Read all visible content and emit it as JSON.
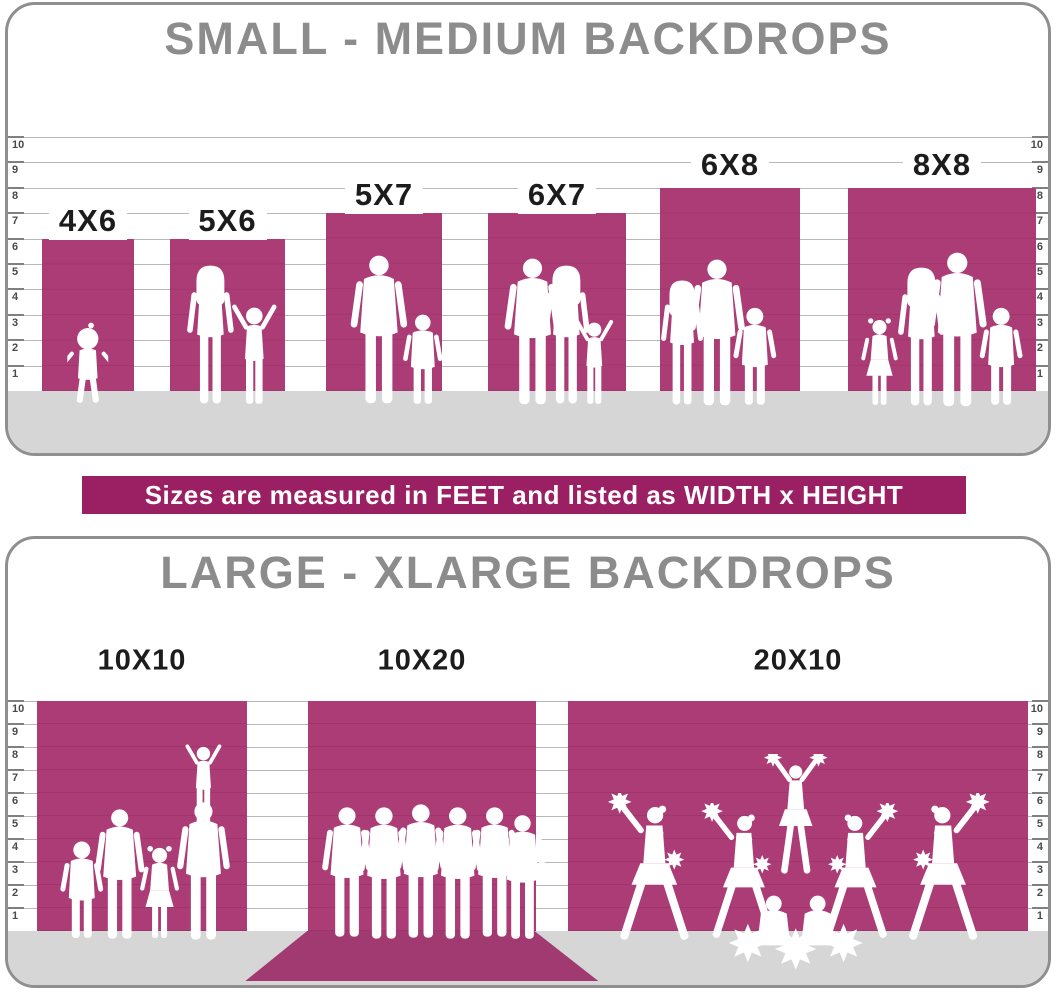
{
  "colors": {
    "backdrop_pink": "#ac3c76",
    "banner_magenta": "#9a1f63",
    "runner_pink": "#a23a72",
    "floor_gray": "#d6d6d6",
    "title_gray": "#8c8c8c",
    "label_black": "#1c1c1c",
    "panel_border_gray": "#8f8f8f",
    "ruler_line_gray": "#b8b8b8",
    "tick_text_gray": "#4a4a4a",
    "silhouette_white": "#ffffff"
  },
  "top_panel": {
    "title": "SMALL - MEDIUM BACKDROPS",
    "ruler_ticks": [
      "1",
      "2",
      "3",
      "4",
      "5",
      "6",
      "7",
      "8",
      "9",
      "10"
    ],
    "backdrops": [
      {
        "label": "4X6",
        "width_ft": 4,
        "height_ft": 6,
        "figures": "toddler-girl"
      },
      {
        "label": "5X6",
        "width_ft": 5,
        "height_ft": 6,
        "figures": "mother-with-child"
      },
      {
        "label": "5X7",
        "width_ft": 5,
        "height_ft": 7,
        "figures": "father-with-son"
      },
      {
        "label": "6X7",
        "width_ft": 6,
        "height_ft": 7,
        "figures": "couple-with-child"
      },
      {
        "label": "6X8",
        "width_ft": 6,
        "height_ft": 8,
        "figures": "family-of-three"
      },
      {
        "label": "8X8",
        "width_ft": 8,
        "height_ft": 8,
        "figures": "family-of-four"
      }
    ]
  },
  "banner": {
    "text": "Sizes are measured in FEET and listed as WIDTH x HEIGHT"
  },
  "bottom_panel": {
    "title": "LARGE - XLARGE BACKDROPS",
    "ruler_ticks": [
      "1",
      "2",
      "3",
      "4",
      "5",
      "6",
      "7",
      "8",
      "9",
      "10"
    ],
    "backdrops": [
      {
        "label": "10X10",
        "width_ft": 10,
        "height_ft": 10,
        "figures": "family-group"
      },
      {
        "label": "10X20",
        "width_ft": 10,
        "height_ft": 20,
        "figures": "group-of-friends"
      },
      {
        "label": "20X10",
        "width_ft": 20,
        "height_ft": 10,
        "figures": "cheerleading-squad"
      }
    ]
  }
}
